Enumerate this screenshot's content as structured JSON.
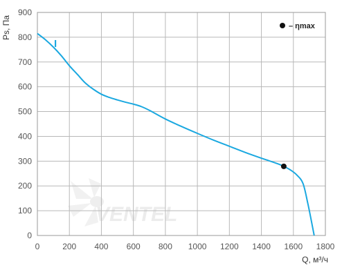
{
  "chart_data": {
    "type": "line",
    "xlabel": "Q, м³/ч",
    "ylabel": "Ps, Па",
    "xlim": [
      0,
      1800
    ],
    "ylim": [
      0,
      900
    ],
    "x_ticks": [
      "0",
      "200",
      "400",
      "600",
      "800",
      "1000",
      "1200",
      "1400",
      "1600",
      "1800"
    ],
    "y_ticks": [
      "0",
      "100",
      "200",
      "300",
      "400",
      "500",
      "600",
      "700",
      "800",
      "900"
    ],
    "grid": true,
    "series": [
      {
        "name": "I",
        "color": "#1aa8e0",
        "points": [
          [
            0,
            815
          ],
          [
            50,
            790
          ],
          [
            100,
            760
          ],
          [
            150,
            725
          ],
          [
            200,
            685
          ],
          [
            250,
            650
          ],
          [
            300,
            615
          ],
          [
            350,
            590
          ],
          [
            400,
            570
          ],
          [
            450,
            557
          ],
          [
            500,
            547
          ],
          [
            550,
            538
          ],
          [
            600,
            530
          ],
          [
            650,
            520
          ],
          [
            700,
            505
          ],
          [
            800,
            470
          ],
          [
            900,
            440
          ],
          [
            1000,
            412
          ],
          [
            1100,
            385
          ],
          [
            1200,
            360
          ],
          [
            1300,
            335
          ],
          [
            1400,
            312
          ],
          [
            1500,
            290
          ],
          [
            1540,
            279
          ],
          [
            1580,
            265
          ],
          [
            1620,
            245
          ],
          [
            1660,
            210
          ],
          [
            1690,
            130
          ],
          [
            1715,
            50
          ],
          [
            1730,
            0
          ]
        ]
      }
    ],
    "eta_max_point": {
      "x": 1540,
      "y": 279
    },
    "legend": {
      "position": "top-right",
      "label": "– ηmax"
    }
  },
  "watermark": {
    "text": "VENTEL"
  }
}
